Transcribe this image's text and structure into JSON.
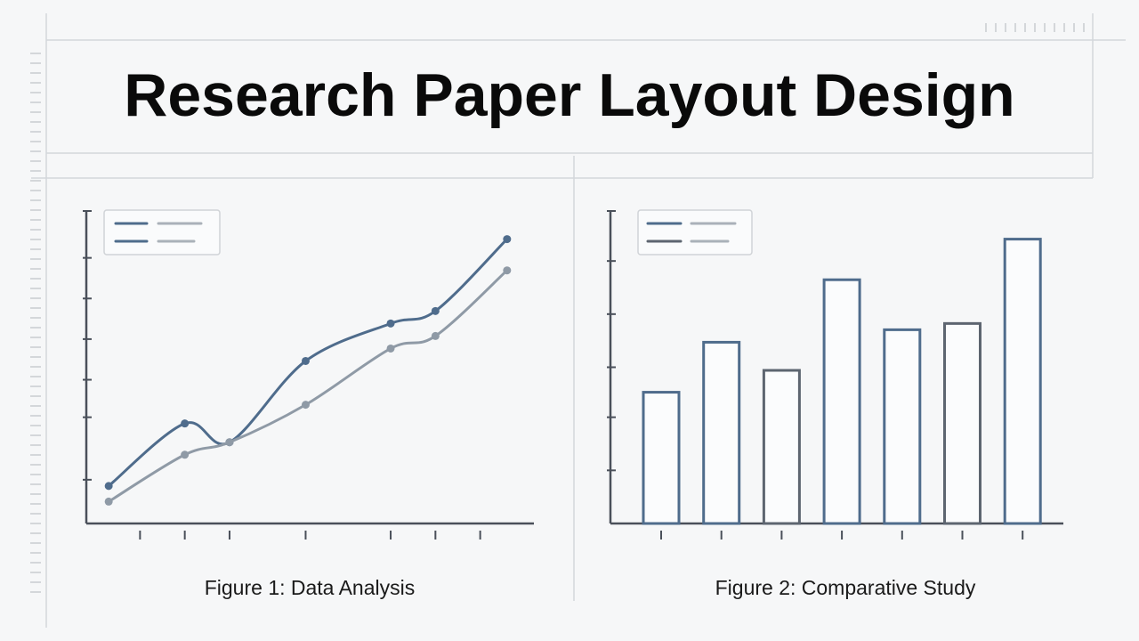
{
  "title": "Research Paper Layout Design",
  "figures": [
    {
      "caption": "Figure 1: Data Analysis",
      "chart": {
        "type": "line",
        "xlim": [
          0,
          100
        ],
        "ylim": [
          0,
          100
        ],
        "xticks": [
          12,
          22,
          32,
          49,
          68,
          78,
          88
        ],
        "yticks": [
          14,
          34,
          46,
          59,
          72,
          85,
          100
        ],
        "series": [
          {
            "color": "#4f6c8c",
            "x": [
              5,
              22,
              32,
              49,
              68,
              78,
              94
            ],
            "values": [
              12,
              32,
              26,
              52,
              64,
              68,
              91
            ]
          },
          {
            "color": "#8f9aa6",
            "x": [
              5,
              22,
              32,
              49,
              68,
              78,
              94
            ],
            "values": [
              7,
              22,
              26,
              38,
              56,
              60,
              81
            ]
          }
        ]
      }
    },
    {
      "caption": "Figure 2: Comparative Study",
      "chart": {
        "type": "bar",
        "ylim": [
          0,
          100
        ],
        "yticks": [
          17,
          34,
          50,
          67,
          84,
          100
        ],
        "categories": [
          null,
          null,
          null,
          null,
          null,
          null,
          null
        ],
        "values": [
          42,
          58,
          49,
          78,
          62,
          64,
          91
        ],
        "colors": [
          "#4f6c8c",
          "#4f6c8c",
          "#5d6570",
          "#4f6c8c",
          "#4f6c8c",
          "#5d6570",
          "#4f6c8c"
        ]
      }
    }
  ]
}
